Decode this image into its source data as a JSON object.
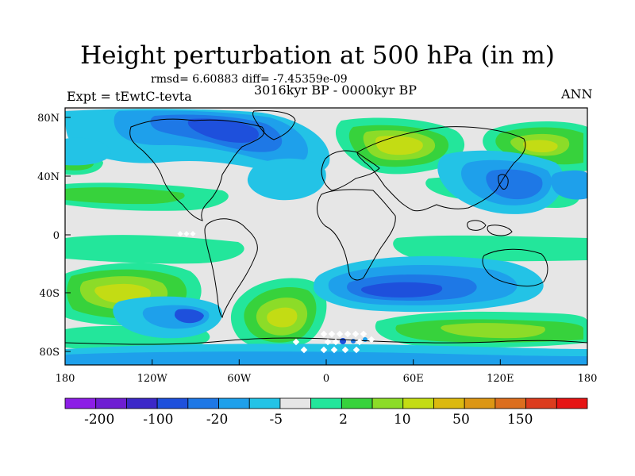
{
  "title": "Height perturbation at 500 hPa (in m)",
  "stats": "rmsd= 6.60883 diff= -7.45359e-09",
  "experiment": "Expt = tEwtC-tevta",
  "period": "3016kyr BP - 0000kyr BP",
  "season": "ANN",
  "axes": {
    "lon_ticks": [
      "180",
      "120W",
      "60W",
      "0",
      "60E",
      "120E",
      "180"
    ],
    "lat_ticks": [
      "80N",
      "40N",
      "0",
      "40S",
      "80S"
    ]
  },
  "colorbar": {
    "colors": [
      "#8c1ee6",
      "#6e1ed2",
      "#3c28c8",
      "#1e50dc",
      "#1e78e6",
      "#1ea0eb",
      "#23c3e6",
      "#e6e6e6",
      "#23e69b",
      "#37d23c",
      "#8cdc28",
      "#c3dc14",
      "#dcb90f",
      "#dc9614",
      "#dc6e1e",
      "#dc3c1e",
      "#e61414"
    ],
    "labels": [
      "-200",
      "-100",
      "-20",
      "-5",
      "2",
      "10",
      "50",
      "150"
    ]
  }
}
